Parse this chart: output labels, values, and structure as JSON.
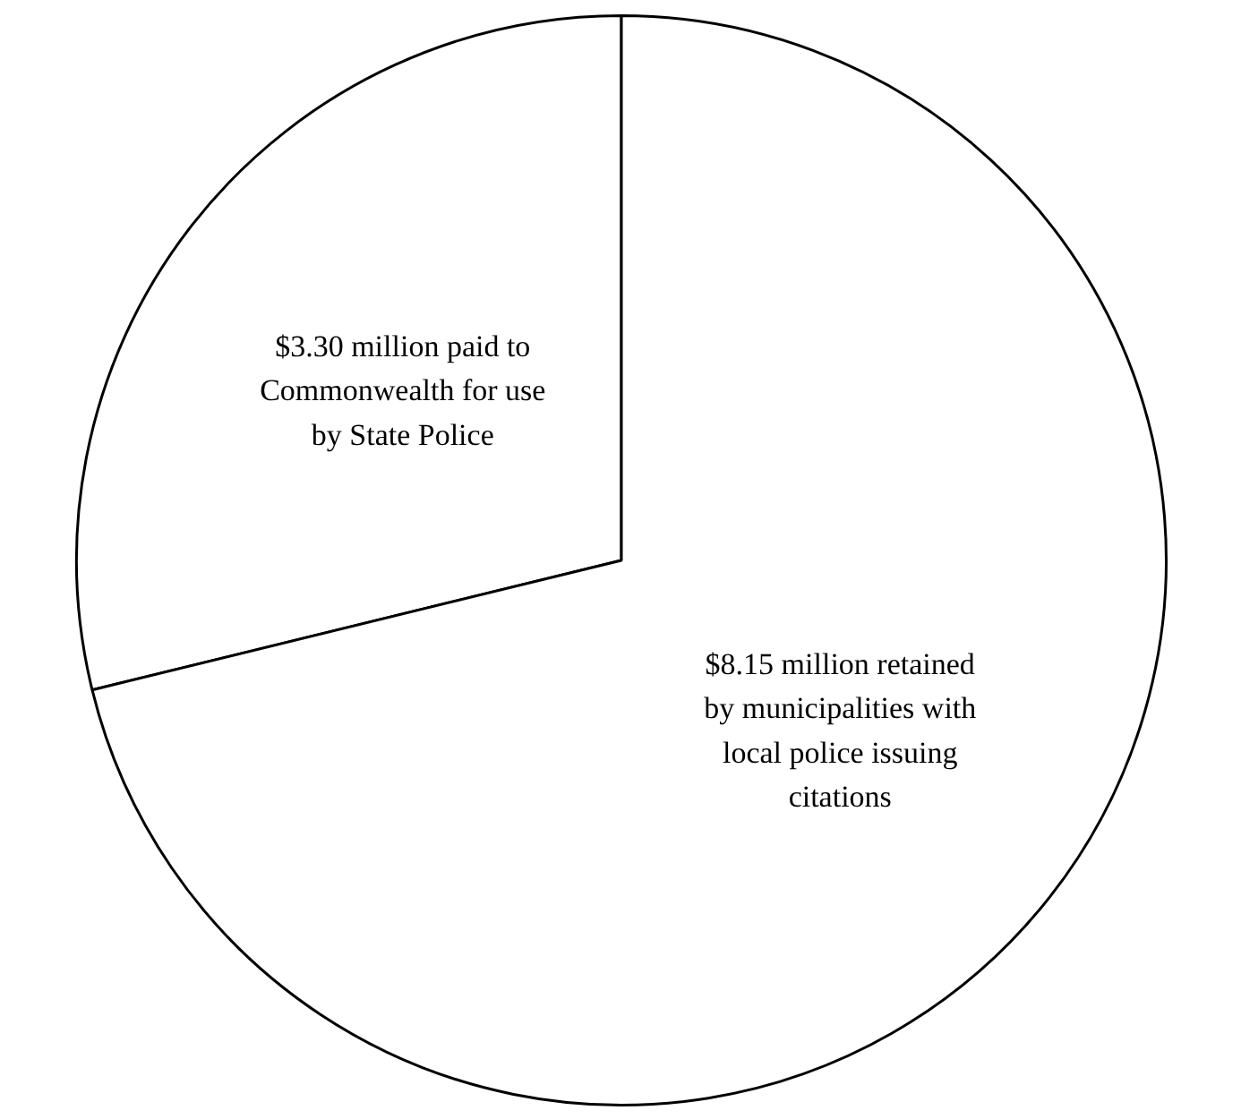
{
  "chart_data": {
    "type": "pie",
    "categories": [
      "$3.30 million paid to Commonwealth for use by State Police",
      "$8.15 million retained by municipalities with local police issuing citations"
    ],
    "values": [
      3.3,
      8.15
    ],
    "colors": [
      "#ffffff",
      "#ffffff"
    ]
  }
}
